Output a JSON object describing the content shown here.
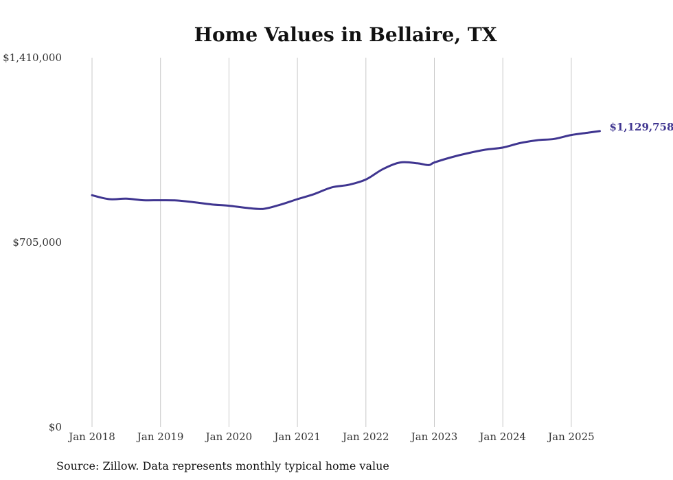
{
  "chart_data": {
    "type": "line",
    "title": "Home Values in Bellaire, TX",
    "xlabel": "",
    "ylabel": "",
    "ylim": [
      0,
      1410000
    ],
    "y_ticks": [
      {
        "value": 0,
        "label": "$0"
      },
      {
        "value": 705000,
        "label": "$705,000"
      },
      {
        "value": 1410000,
        "label": "$1,410,000"
      }
    ],
    "x_ticks": [
      {
        "value": 2018.0,
        "label": "Jan 2018"
      },
      {
        "value": 2019.0,
        "label": "Jan 2019"
      },
      {
        "value": 2020.0,
        "label": "Jan 2020"
      },
      {
        "value": 2021.0,
        "label": "Jan 2021"
      },
      {
        "value": 2022.0,
        "label": "Jan 2022"
      },
      {
        "value": 2023.0,
        "label": "Jan 2023"
      },
      {
        "value": 2024.0,
        "label": "Jan 2024"
      },
      {
        "value": 2025.0,
        "label": "Jan 2025"
      }
    ],
    "xlim": [
      2018.0,
      2025.5
    ],
    "grid": {
      "x": true,
      "y": false
    },
    "color": "#3f3590",
    "series": [
      {
        "name": "",
        "x": [
          2018.0,
          2018.25,
          2018.5,
          2018.75,
          2019.0,
          2019.25,
          2019.5,
          2019.75,
          2020.0,
          2020.25,
          2020.5,
          2020.75,
          2021.0,
          2021.25,
          2021.5,
          2021.75,
          2022.0,
          2022.25,
          2022.5,
          2022.75,
          2022.917,
          2023.0,
          2023.25,
          2023.5,
          2023.75,
          2024.0,
          2024.25,
          2024.5,
          2024.75,
          2025.0,
          2025.25,
          2025.417
        ],
        "y": [
          885000,
          870000,
          872000,
          866000,
          866000,
          865000,
          858000,
          850000,
          845000,
          837000,
          833000,
          849000,
          870000,
          890000,
          915000,
          925000,
          945000,
          985000,
          1010000,
          1007000,
          1000000,
          1010000,
          1030000,
          1046000,
          1059000,
          1067000,
          1084000,
          1095000,
          1100000,
          1115000,
          1124000,
          1129758
        ]
      }
    ],
    "end_label": "$1,129,758"
  },
  "footer": {
    "source": "Source: Zillow. Data represents monthly typical home value"
  }
}
